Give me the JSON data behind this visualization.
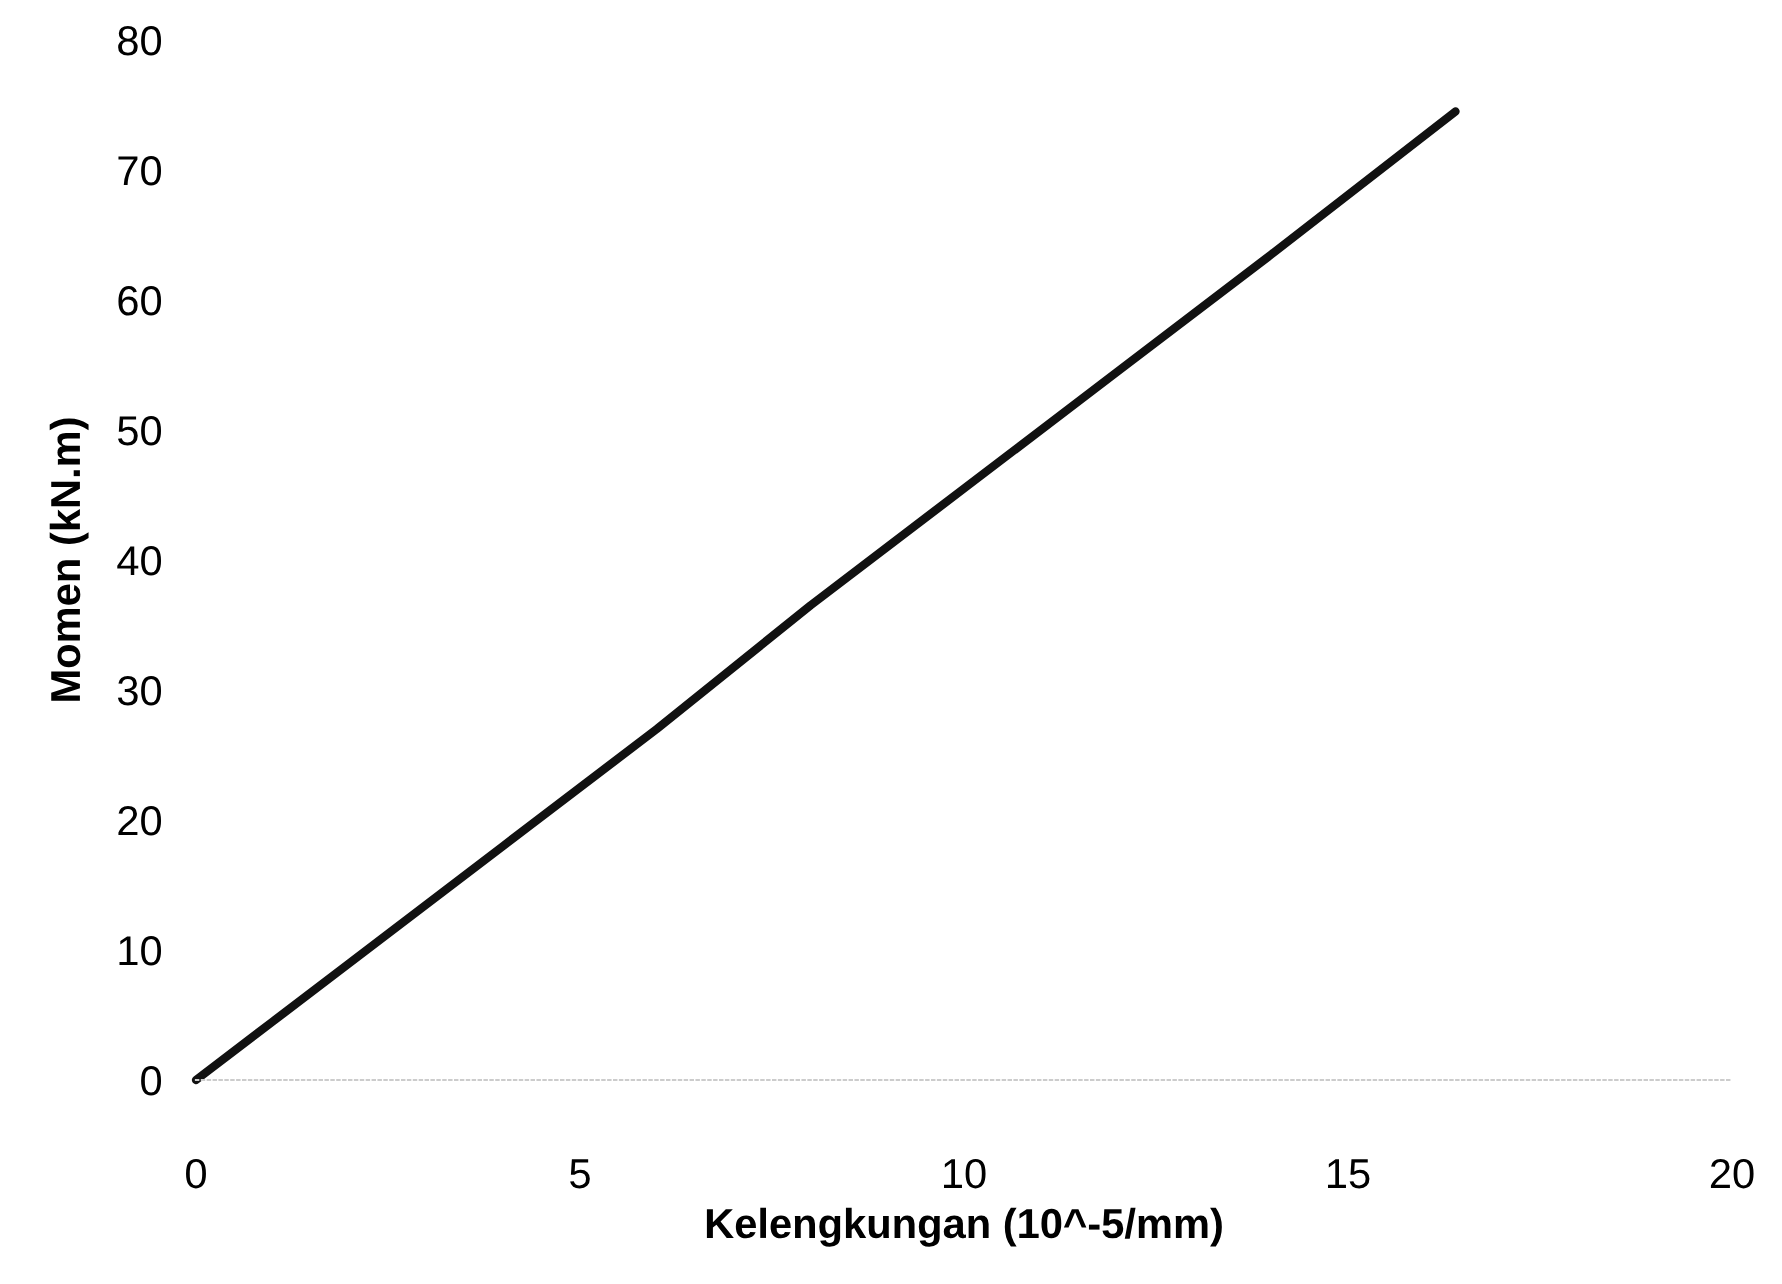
{
  "chart_data": {
    "type": "line",
    "xlabel": "Kelengkungan (10^-5/mm)",
    "ylabel": "Momen (kN.m)",
    "x": [
      0,
      1,
      2,
      4,
      6,
      8,
      10,
      12,
      14,
      16.4
    ],
    "series": [
      {
        "color": "#111111",
        "values": [
          0,
          4.5,
          9,
          18,
          27,
          36.5,
          45.5,
          54.5,
          63.5,
          74.5
        ]
      }
    ],
    "xlim": [
      0,
      20
    ],
    "xticks": [
      0,
      5,
      10,
      15,
      20
    ],
    "ylim": [
      0,
      80
    ],
    "yticks": [
      0,
      10,
      20,
      30,
      40,
      50,
      60,
      70,
      80
    ],
    "grid": false,
    "legend": false,
    "marker": "none",
    "line_style": "solid"
  }
}
